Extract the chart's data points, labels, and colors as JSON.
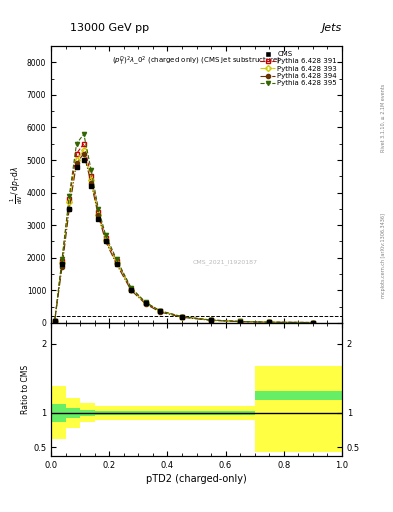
{
  "title_top": "13000 GeV pp",
  "title_right": "Jets",
  "plot_title": "$(p_T^D)^2\\lambda\\_0^2$ (charged only) (CMS jet substructure)",
  "xlabel": "pTD2 (charged-only)",
  "ylabel_lines": [
    "$\\frac{1}{\\mathrm{d}N}$",
    "$/\\,\\mathrm{d}p_T$",
    "$\\mathrm{d}\\lambda$"
  ],
  "ylabel_ratio": "Ratio to CMS",
  "right_label": "mcplots.cern.ch [arXiv:1306.3436]",
  "right_label2": "Rivet 3.1.10, ≥ 2.1M events",
  "watermark": "CMS_2021_I1920187",
  "xlim": [
    0.0,
    1.0
  ],
  "ylim_main": [
    0,
    8500
  ],
  "ylim_ratio": [
    0.38,
    2.3
  ],
  "ratio_yticks": [
    0.5,
    1.0,
    2.0
  ],
  "x_bins": [
    0.0,
    0.025,
    0.05,
    0.075,
    0.1,
    0.125,
    0.15,
    0.175,
    0.2,
    0.25,
    0.3,
    0.35,
    0.4,
    0.5,
    0.6,
    0.7,
    0.8,
    1.0
  ],
  "cms_y": [
    50,
    1800,
    3500,
    4800,
    5000,
    4200,
    3200,
    2500,
    1800,
    1000,
    600,
    350,
    180,
    80,
    40,
    20,
    10
  ],
  "p391_y": [
    60,
    1900,
    3800,
    5200,
    5500,
    4500,
    3400,
    2600,
    1900,
    1050,
    620,
    360,
    190,
    85,
    42,
    20,
    10
  ],
  "p393_y": [
    60,
    1850,
    3700,
    5000,
    5300,
    4400,
    3300,
    2550,
    1850,
    1020,
    600,
    350,
    185,
    82,
    40,
    19,
    9
  ],
  "p394_y": [
    70,
    1700,
    3500,
    4900,
    5200,
    4300,
    3300,
    2500,
    1800,
    1000,
    580,
    330,
    170,
    75,
    37,
    18,
    9
  ],
  "p395_y": [
    65,
    1950,
    3900,
    5500,
    5800,
    4700,
    3500,
    2700,
    1950,
    1080,
    630,
    370,
    190,
    88,
    43,
    21,
    10
  ],
  "cms_color": "#000000",
  "p391_color": "#cc0000",
  "p393_color": "#cccc00",
  "p394_color": "#663300",
  "p395_color": "#336600",
  "ratio_x_bins": [
    0.0,
    0.05,
    0.1,
    0.15,
    0.2,
    0.25,
    0.3,
    0.35,
    0.4,
    0.5,
    0.6,
    0.7,
    0.8,
    1.0
  ],
  "ratio_green_lo": [
    0.87,
    0.93,
    0.96,
    0.97,
    0.97,
    0.97,
    0.97,
    0.97,
    0.97,
    0.97,
    0.97,
    1.18,
    1.18,
    1.18
  ],
  "ratio_green_hi": [
    1.13,
    1.07,
    1.04,
    1.03,
    1.03,
    1.03,
    1.03,
    1.03,
    1.03,
    1.03,
    1.03,
    1.32,
    1.32,
    1.32
  ],
  "ratio_yellow_lo": [
    0.62,
    0.78,
    0.86,
    0.9,
    0.9,
    0.9,
    0.9,
    0.9,
    0.9,
    0.9,
    0.9,
    0.43,
    0.43,
    0.43
  ],
  "ratio_yellow_hi": [
    1.38,
    1.22,
    1.14,
    1.1,
    1.1,
    1.1,
    1.1,
    1.1,
    1.1,
    1.1,
    1.1,
    1.67,
    1.67,
    1.67
  ],
  "background_color": "#ffffff"
}
